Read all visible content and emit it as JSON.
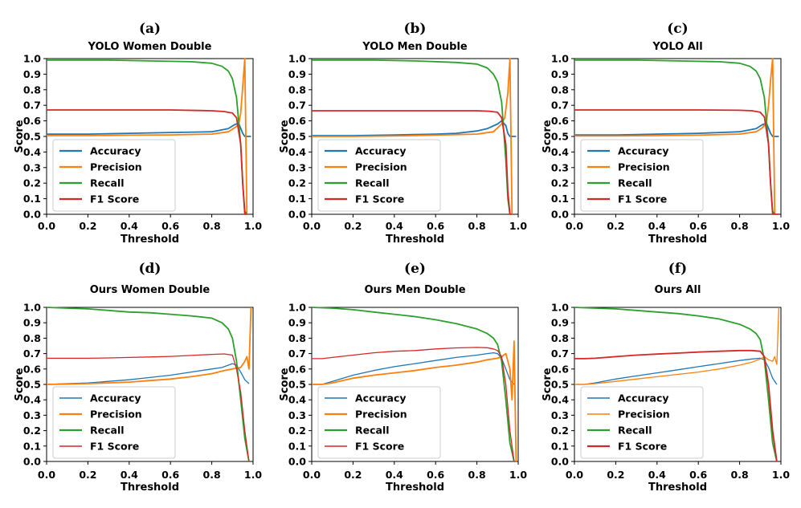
{
  "colors": {
    "accuracy": "#1f77b4",
    "precision": "#ff7f0e",
    "recall": "#2ca02c",
    "f1": "#d62728"
  },
  "chart_data": [
    {
      "type": "line",
      "panel": "(a)",
      "title": "YOLO Women Double",
      "xlabel": "Threshold",
      "ylabel": "Score",
      "xlim": [
        0,
        1
      ],
      "ylim": [
        0,
        1
      ],
      "xticks": [
        "0.0",
        "0.2",
        "0.4",
        "0.6",
        "0.8",
        "1.0"
      ],
      "yticks": [
        "0.0",
        "0.1",
        "0.2",
        "0.3",
        "0.4",
        "0.5",
        "0.6",
        "0.7",
        "0.8",
        "0.9",
        "1.0"
      ],
      "grid": false,
      "legend": "bottom-left",
      "thick_series": [
        "Accuracy",
        "Precision",
        "Recall",
        "F1 Score"
      ],
      "series": [
        {
          "name": "Accuracy",
          "x": [
            0,
            0.2,
            0.4,
            0.6,
            0.8,
            0.88,
            0.91,
            0.93,
            0.95,
            0.96,
            0.99
          ],
          "y": [
            0.515,
            0.515,
            0.52,
            0.525,
            0.53,
            0.55,
            0.575,
            0.585,
            0.52,
            0.5,
            0.5
          ]
        },
        {
          "name": "Precision",
          "x": [
            0,
            0.2,
            0.4,
            0.6,
            0.8,
            0.88,
            0.91,
            0.93,
            0.94,
            0.95,
            0.96,
            0.97
          ],
          "y": [
            0.505,
            0.505,
            0.508,
            0.51,
            0.515,
            0.53,
            0.555,
            0.575,
            0.65,
            0.82,
            1.0,
            0.0
          ]
        },
        {
          "name": "Recall",
          "x": [
            0,
            0.3,
            0.5,
            0.7,
            0.8,
            0.85,
            0.88,
            0.9,
            0.92,
            0.94,
            0.95,
            0.96,
            0.97
          ],
          "y": [
            0.99,
            0.99,
            0.985,
            0.98,
            0.97,
            0.95,
            0.92,
            0.87,
            0.75,
            0.45,
            0.2,
            0.02,
            0.0
          ]
        },
        {
          "name": "F1 Score",
          "x": [
            0,
            0.3,
            0.6,
            0.8,
            0.86,
            0.9,
            0.92,
            0.94,
            0.95,
            0.96,
            0.97
          ],
          "y": [
            0.67,
            0.67,
            0.67,
            0.665,
            0.66,
            0.65,
            0.62,
            0.45,
            0.2,
            0.0,
            0.0
          ]
        }
      ]
    },
    {
      "type": "line",
      "panel": "(b)",
      "title": "YOLO Men Double",
      "xlabel": "Threshold",
      "ylabel": "Score",
      "xlim": [
        0,
        1
      ],
      "ylim": [
        0,
        1
      ],
      "xticks": [
        "0.0",
        "0.2",
        "0.4",
        "0.6",
        "0.8",
        "1.0"
      ],
      "yticks": [
        "0.0",
        "0.1",
        "0.2",
        "0.3",
        "0.4",
        "0.5",
        "0.6",
        "0.7",
        "0.8",
        "0.9",
        "1.0"
      ],
      "grid": false,
      "legend": "bottom-left",
      "thick_series": [
        "Accuracy",
        "Precision",
        "Recall",
        "F1 Score"
      ],
      "series": [
        {
          "name": "Accuracy",
          "x": [
            0,
            0.2,
            0.4,
            0.6,
            0.7,
            0.8,
            0.85,
            0.9,
            0.92,
            0.94,
            0.95,
            0.96,
            0.99
          ],
          "y": [
            0.505,
            0.505,
            0.51,
            0.515,
            0.52,
            0.535,
            0.55,
            0.58,
            0.6,
            0.57,
            0.52,
            0.5,
            0.5
          ]
        },
        {
          "name": "Precision",
          "x": [
            0,
            0.2,
            0.4,
            0.6,
            0.8,
            0.88,
            0.92,
            0.935,
            0.95,
            0.96,
            0.97
          ],
          "y": [
            0.5,
            0.5,
            0.503,
            0.508,
            0.515,
            0.53,
            0.58,
            0.62,
            0.78,
            1.0,
            0.0
          ]
        },
        {
          "name": "Recall",
          "x": [
            0,
            0.3,
            0.5,
            0.7,
            0.8,
            0.85,
            0.88,
            0.9,
            0.92,
            0.94,
            0.95,
            0.96
          ],
          "y": [
            0.99,
            0.99,
            0.985,
            0.975,
            0.965,
            0.94,
            0.9,
            0.85,
            0.72,
            0.35,
            0.1,
            0.0
          ]
        },
        {
          "name": "F1 Score",
          "x": [
            0,
            0.3,
            0.6,
            0.8,
            0.86,
            0.9,
            0.92,
            0.94,
            0.95,
            0.96,
            0.97
          ],
          "y": [
            0.665,
            0.665,
            0.665,
            0.665,
            0.662,
            0.655,
            0.62,
            0.45,
            0.15,
            0.0,
            0.0
          ]
        }
      ]
    },
    {
      "type": "line",
      "panel": "(c)",
      "title": "YOLO All",
      "xlabel": "Threshold",
      "ylabel": "Score",
      "xlim": [
        0,
        1
      ],
      "ylim": [
        0,
        1
      ],
      "xticks": [
        "0.0",
        "0.2",
        "0.4",
        "0.6",
        "0.8",
        "1.0"
      ],
      "yticks": [
        "0.0",
        "0.1",
        "0.2",
        "0.3",
        "0.4",
        "0.5",
        "0.6",
        "0.7",
        "0.8",
        "0.9",
        "1.0"
      ],
      "grid": false,
      "legend": "bottom-left",
      "thick_series": [
        "Accuracy",
        "Precision",
        "Recall",
        "F1 Score"
      ],
      "series": [
        {
          "name": "Accuracy",
          "x": [
            0,
            0.2,
            0.4,
            0.6,
            0.8,
            0.88,
            0.91,
            0.93,
            0.95,
            0.96,
            0.99
          ],
          "y": [
            0.51,
            0.51,
            0.515,
            0.52,
            0.53,
            0.55,
            0.575,
            0.585,
            0.52,
            0.5,
            0.5
          ]
        },
        {
          "name": "Precision",
          "x": [
            0,
            0.2,
            0.4,
            0.6,
            0.8,
            0.88,
            0.91,
            0.93,
            0.94,
            0.95,
            0.96,
            0.97
          ],
          "y": [
            0.503,
            0.503,
            0.505,
            0.508,
            0.515,
            0.53,
            0.555,
            0.59,
            0.7,
            0.86,
            1.0,
            0.0
          ]
        },
        {
          "name": "Recall",
          "x": [
            0,
            0.3,
            0.5,
            0.7,
            0.8,
            0.85,
            0.88,
            0.9,
            0.92,
            0.94,
            0.95,
            0.96,
            0.97
          ],
          "y": [
            0.99,
            0.99,
            0.985,
            0.98,
            0.97,
            0.95,
            0.92,
            0.87,
            0.75,
            0.45,
            0.2,
            0.02,
            0.0
          ]
        },
        {
          "name": "F1 Score",
          "x": [
            0,
            0.3,
            0.6,
            0.8,
            0.86,
            0.9,
            0.92,
            0.94,
            0.95,
            0.96,
            0.97,
            0.99
          ],
          "y": [
            0.67,
            0.67,
            0.67,
            0.668,
            0.665,
            0.655,
            0.625,
            0.45,
            0.2,
            0.0,
            0.0,
            0.0
          ]
        }
      ]
    },
    {
      "type": "line",
      "panel": "(d)",
      "title": "Ours Women Double",
      "xlabel": "Threshold",
      "ylabel": "Score",
      "xlim": [
        0,
        1
      ],
      "ylim": [
        0,
        1
      ],
      "xticks": [
        "0.0",
        "0.2",
        "0.4",
        "0.6",
        "0.8",
        "1.0"
      ],
      "yticks": [
        "0.0",
        "0.1",
        "0.2",
        "0.3",
        "0.4",
        "0.5",
        "0.6",
        "0.7",
        "0.8",
        "0.9",
        "1.0"
      ],
      "grid": false,
      "legend": "bottom-left",
      "thick_series": [
        "Precision",
        "Recall"
      ],
      "series": [
        {
          "name": "Accuracy",
          "x": [
            0,
            0.1,
            0.2,
            0.3,
            0.4,
            0.5,
            0.6,
            0.7,
            0.8,
            0.85,
            0.88,
            0.9,
            0.92,
            0.94,
            0.96,
            0.98
          ],
          "y": [
            0.5,
            0.505,
            0.51,
            0.52,
            0.53,
            0.545,
            0.56,
            0.58,
            0.6,
            0.61,
            0.625,
            0.635,
            0.625,
            0.58,
            0.53,
            0.505
          ]
        },
        {
          "name": "Precision",
          "x": [
            0,
            0.1,
            0.2,
            0.3,
            0.4,
            0.5,
            0.6,
            0.7,
            0.8,
            0.86,
            0.9,
            0.92,
            0.94,
            0.96,
            0.97,
            0.98,
            0.99
          ],
          "y": [
            0.5,
            0.502,
            0.505,
            0.51,
            0.515,
            0.525,
            0.535,
            0.55,
            0.57,
            0.59,
            0.6,
            0.605,
            0.61,
            0.65,
            0.68,
            0.6,
            1.0
          ]
        },
        {
          "name": "Recall",
          "x": [
            0,
            0.1,
            0.2,
            0.3,
            0.4,
            0.5,
            0.6,
            0.7,
            0.8,
            0.85,
            0.88,
            0.9,
            0.92,
            0.94,
            0.96,
            0.98
          ],
          "y": [
            1.0,
            0.995,
            0.99,
            0.98,
            0.97,
            0.965,
            0.955,
            0.945,
            0.93,
            0.9,
            0.86,
            0.8,
            0.65,
            0.4,
            0.15,
            0.0
          ]
        },
        {
          "name": "F1 Score",
          "x": [
            0,
            0.1,
            0.2,
            0.3,
            0.4,
            0.5,
            0.6,
            0.7,
            0.8,
            0.86,
            0.9,
            0.92,
            0.94,
            0.96,
            0.98
          ],
          "y": [
            0.67,
            0.67,
            0.67,
            0.672,
            0.675,
            0.678,
            0.682,
            0.688,
            0.695,
            0.698,
            0.69,
            0.6,
            0.45,
            0.2,
            0.0
          ]
        }
      ]
    },
    {
      "type": "line",
      "panel": "(e)",
      "title": "Ours Men Double",
      "xlabel": "Threshold",
      "ylabel": "Score",
      "xlim": [
        0,
        1
      ],
      "ylim": [
        0,
        1
      ],
      "xticks": [
        "0.0",
        "0.2",
        "0.4",
        "0.6",
        "0.8",
        "1.0"
      ],
      "yticks": [
        "0.0",
        "0.1",
        "0.2",
        "0.3",
        "0.4",
        "0.5",
        "0.6",
        "0.7",
        "0.8",
        "0.9",
        "1.0"
      ],
      "grid": false,
      "legend": "bottom-left",
      "thick_series": [
        "Precision",
        "Recall"
      ],
      "series": [
        {
          "name": "Accuracy",
          "x": [
            0,
            0.05,
            0.1,
            0.2,
            0.3,
            0.4,
            0.5,
            0.6,
            0.7,
            0.8,
            0.85,
            0.88,
            0.9,
            0.92,
            0.94,
            0.96,
            0.98
          ],
          "y": [
            0.5,
            0.5,
            0.52,
            0.56,
            0.59,
            0.615,
            0.635,
            0.655,
            0.675,
            0.69,
            0.7,
            0.705,
            0.7,
            0.67,
            0.6,
            0.53,
            0.5
          ]
        },
        {
          "name": "Precision",
          "x": [
            0,
            0.05,
            0.1,
            0.2,
            0.3,
            0.4,
            0.5,
            0.6,
            0.7,
            0.8,
            0.85,
            0.9,
            0.92,
            0.94,
            0.96,
            0.97,
            0.98,
            0.99
          ],
          "y": [
            0.5,
            0.5,
            0.51,
            0.54,
            0.56,
            0.575,
            0.59,
            0.61,
            0.625,
            0.645,
            0.66,
            0.67,
            0.68,
            0.7,
            0.6,
            0.4,
            0.78,
            0.0
          ]
        },
        {
          "name": "Recall",
          "x": [
            0,
            0.1,
            0.2,
            0.3,
            0.4,
            0.5,
            0.6,
            0.7,
            0.8,
            0.85,
            0.88,
            0.9,
            0.92,
            0.94,
            0.96,
            0.98
          ],
          "y": [
            1.0,
            0.995,
            0.985,
            0.97,
            0.955,
            0.94,
            0.92,
            0.895,
            0.86,
            0.83,
            0.8,
            0.76,
            0.65,
            0.4,
            0.12,
            0.0
          ]
        },
        {
          "name": "F1 Score",
          "x": [
            0,
            0.05,
            0.1,
            0.2,
            0.3,
            0.4,
            0.5,
            0.6,
            0.7,
            0.8,
            0.85,
            0.88,
            0.9,
            0.92,
            0.94,
            0.96,
            0.98
          ],
          "y": [
            0.667,
            0.667,
            0.675,
            0.69,
            0.705,
            0.715,
            0.72,
            0.73,
            0.737,
            0.74,
            0.738,
            0.73,
            0.72,
            0.68,
            0.5,
            0.2,
            0.0
          ]
        }
      ]
    },
    {
      "type": "line",
      "panel": "(f)",
      "title": "Ours All",
      "xlabel": "Threshold",
      "ylabel": "Score",
      "xlim": [
        0,
        1
      ],
      "ylim": [
        0,
        1
      ],
      "xticks": [
        "0.0",
        "0.2",
        "0.4",
        "0.6",
        "0.8",
        "1.0"
      ],
      "yticks": [
        "0.0",
        "0.1",
        "0.2",
        "0.3",
        "0.4",
        "0.5",
        "0.6",
        "0.7",
        "0.8",
        "0.9",
        "1.0"
      ],
      "grid": false,
      "legend": "bottom-left",
      "thick_series": [
        "Recall",
        "F1 Score"
      ],
      "series": [
        {
          "name": "Accuracy",
          "x": [
            0,
            0.05,
            0.1,
            0.2,
            0.3,
            0.4,
            0.5,
            0.6,
            0.7,
            0.8,
            0.86,
            0.9,
            0.92,
            0.94,
            0.96,
            0.98
          ],
          "y": [
            0.5,
            0.5,
            0.51,
            0.535,
            0.555,
            0.575,
            0.595,
            0.615,
            0.635,
            0.655,
            0.665,
            0.67,
            0.66,
            0.61,
            0.54,
            0.5
          ]
        },
        {
          "name": "Precision",
          "x": [
            0,
            0.05,
            0.1,
            0.2,
            0.3,
            0.4,
            0.5,
            0.6,
            0.7,
            0.8,
            0.86,
            0.9,
            0.92,
            0.94,
            0.96,
            0.97,
            0.98,
            0.99
          ],
          "y": [
            0.5,
            0.5,
            0.505,
            0.52,
            0.535,
            0.55,
            0.565,
            0.58,
            0.6,
            0.625,
            0.645,
            0.665,
            0.68,
            0.66,
            0.65,
            0.68,
            0.63,
            1.0
          ]
        },
        {
          "name": "Recall",
          "x": [
            0,
            0.1,
            0.2,
            0.3,
            0.4,
            0.5,
            0.6,
            0.7,
            0.8,
            0.85,
            0.88,
            0.9,
            0.92,
            0.94,
            0.96,
            0.98
          ],
          "y": [
            1.0,
            0.995,
            0.99,
            0.98,
            0.97,
            0.96,
            0.945,
            0.925,
            0.89,
            0.86,
            0.83,
            0.79,
            0.66,
            0.4,
            0.12,
            0.0
          ]
        },
        {
          "name": "F1 Score",
          "x": [
            0,
            0.05,
            0.1,
            0.2,
            0.3,
            0.4,
            0.5,
            0.6,
            0.7,
            0.8,
            0.86,
            0.9,
            0.92,
            0.94,
            0.96,
            0.98
          ],
          "y": [
            0.667,
            0.667,
            0.67,
            0.68,
            0.69,
            0.697,
            0.703,
            0.71,
            0.715,
            0.72,
            0.72,
            0.715,
            0.68,
            0.5,
            0.2,
            0.0
          ]
        }
      ]
    }
  ]
}
